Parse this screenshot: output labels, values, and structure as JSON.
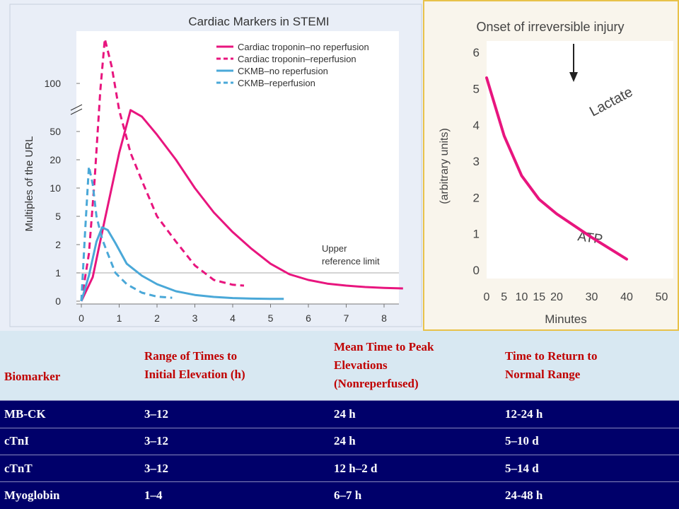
{
  "chart_data": [
    {
      "type": "line",
      "title": "Cardiac Markers in STEMI",
      "xlabel": "",
      "ylabel": "Multiples of the URL",
      "xlim": [
        0,
        8.5
      ],
      "x_ticks": [
        "0",
        "1",
        "2",
        "3",
        "4",
        "5",
        "6",
        "7",
        "8"
      ],
      "y_ticks": [
        "0",
        "1",
        "2",
        "5",
        "10",
        "20",
        "50",
        "100"
      ],
      "y_scale": "log-like with axis break between 50 and 100",
      "grid": false,
      "legend": "top-right",
      "annotation": "Upper reference limit",
      "reference_line": 1,
      "series": [
        {
          "name": "Cardiac troponin–no reperfusion",
          "color": "#e8157e",
          "dash": "solid",
          "x": [
            0,
            0.3,
            0.6,
            1.0,
            1.3,
            1.6,
            2.0,
            2.5,
            3,
            3.5,
            4,
            4.5,
            5,
            5.5,
            6,
            6.5,
            7,
            7.5,
            8,
            8.5
          ],
          "y": [
            0,
            0.85,
            4,
            25,
            68,
            62,
            45,
            20,
            10,
            5.5,
            3,
            1.8,
            1.25,
            0.95,
            0.75,
            0.62,
            0.55,
            0.5,
            0.47,
            0.45
          ]
        },
        {
          "name": "Cardiac troponin–reperfusion",
          "color": "#e8157e",
          "dash": "dashed",
          "x": [
            0,
            0.2,
            0.35,
            0.5,
            0.62,
            0.8,
            1.0,
            1.3,
            1.6,
            2.0,
            2.5,
            3,
            3.5,
            4,
            4.3
          ],
          "y": [
            0,
            1.6,
            12,
            90,
            160,
            120,
            68,
            25,
            12,
            5,
            2.2,
            1.2,
            0.75,
            0.58,
            0.55
          ]
        },
        {
          "name": "CKMB–no reperfusion",
          "color": "#4aa8d8",
          "dash": "solid",
          "x": [
            0,
            0.2,
            0.4,
            0.55,
            0.7,
            0.9,
            1.2,
            1.6,
            2,
            2.5,
            3,
            3.5,
            4,
            4.5,
            5,
            5.35
          ],
          "y": [
            0,
            0.9,
            2.2,
            3.5,
            3.2,
            2.1,
            1.25,
            0.9,
            0.6,
            0.35,
            0.22,
            0.15,
            0.11,
            0.09,
            0.08,
            0.08
          ]
        },
        {
          "name": "CKMB–reperfusion",
          "color": "#4aa8d8",
          "dash": "dashed",
          "x": [
            0,
            0.1,
            0.2,
            0.3,
            0.4,
            0.55,
            0.7,
            0.9,
            1.2,
            1.6,
            2,
            2.4
          ],
          "y": [
            0,
            3,
            17,
            11,
            5,
            2.4,
            1.6,
            1,
            0.6,
            0.3,
            0.16,
            0.12
          ]
        }
      ]
    },
    {
      "type": "line",
      "title": "Onset of irreversible injury",
      "xlabel": "Minutes",
      "ylabel": "(arbitrary units)",
      "xlim": [
        0,
        50
      ],
      "ylim": [
        0,
        6
      ],
      "x_ticks": [
        "0",
        "5",
        "10",
        "15",
        "20",
        "30",
        "40",
        "50"
      ],
      "y_ticks": [
        "0",
        "1",
        "2",
        "3",
        "4",
        "5",
        "6"
      ],
      "labels": [
        "Lactate",
        "ATP"
      ],
      "series": [
        {
          "name": "",
          "color": "#e8157e",
          "x": [
            0,
            5,
            10,
            15,
            20,
            30,
            40
          ],
          "y": [
            5.3,
            3.7,
            2.6,
            1.95,
            1.55,
            0.9,
            0.3
          ]
        }
      ]
    }
  ],
  "table": {
    "headers": [
      "Biomarker",
      [
        "Range of Times to",
        "Initial Elevation (h)"
      ],
      [
        "Mean Time to Peak",
        "Elevations",
        "(Nonreperfused)"
      ],
      [
        "Time to Return to",
        "Normal Range"
      ]
    ],
    "rows": [
      [
        "MB-CK",
        "3–12",
        "24 h",
        "12-24 h"
      ],
      [
        "cTnI",
        "3–12",
        "24 h",
        "5–10 d"
      ],
      [
        "cTnT",
        "3–12",
        "12 h–2 d",
        "5–14 d"
      ],
      [
        "Myoglobin",
        "1–4",
        "6–7 h",
        "24-48 h"
      ]
    ]
  }
}
